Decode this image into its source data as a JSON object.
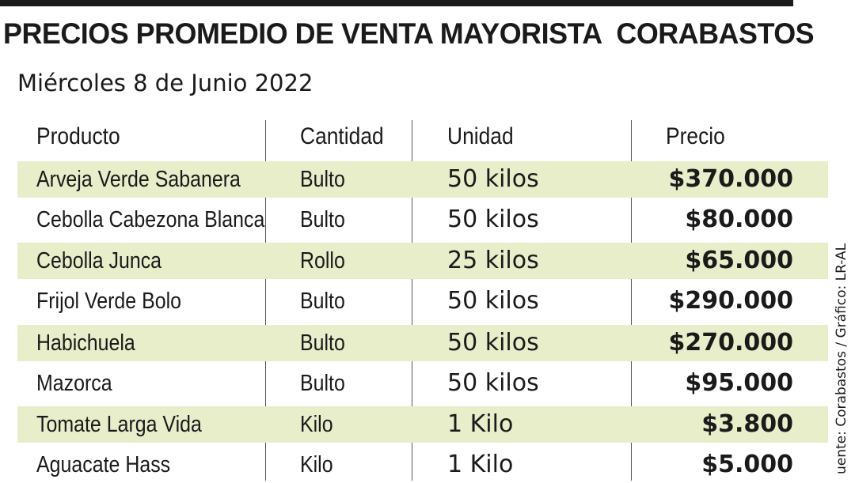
{
  "title": "PRECIOS PROMEDIO DE VENTA MAYORISTA  CORABASTOS",
  "subtitle": "Miércoles 8 de Junio 2022",
  "headers": {
    "producto": "Producto",
    "cantidad": "Cantidad",
    "unidad": "Unidad",
    "precio": "Precio"
  },
  "rows": [
    {
      "producto": "Arveja Verde Sabanera",
      "cantidad": "Bulto",
      "unidad": "50 kilos",
      "precio": "$370.000"
    },
    {
      "producto": "Cebolla Cabezona Blanca",
      "cantidad": "Bulto",
      "unidad": "50 kilos",
      "precio": "$80.000"
    },
    {
      "producto": "Cebolla  Junca",
      "cantidad": "Rollo",
      "unidad": "25 kilos",
      "precio": "$65.000"
    },
    {
      "producto": "Frijol Verde Bolo",
      "cantidad": "Bulto",
      "unidad": "50 kilos",
      "precio": "$290.000"
    },
    {
      "producto": "Habichuela",
      "cantidad": "Bulto",
      "unidad": "50 kilos",
      "precio": "$270.000"
    },
    {
      "producto": "Mazorca",
      "cantidad": "Bulto",
      "unidad": "50 kilos",
      "precio": "$95.000"
    },
    {
      "producto": "Tomate Larga Vida",
      "cantidad": "Kilo",
      "unidad": "1 Kilo",
      "precio": "$3.800"
    },
    {
      "producto": "Aguacate Hass",
      "cantidad": "Kilo",
      "unidad": "1 Kilo",
      "precio": "$5.000"
    }
  ],
  "source": "uente: Corabastos / Gráfico: LR-AL",
  "colors": {
    "shaded_row": "#e8edca",
    "text": "#1a1a1a"
  }
}
